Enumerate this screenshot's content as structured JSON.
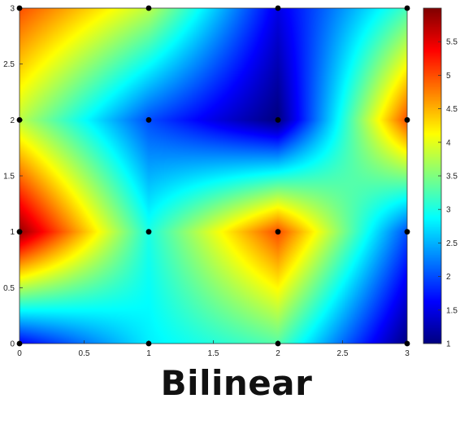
{
  "caption": "Bilinear",
  "chart_data": {
    "type": "heatmap",
    "interpolation": "bilinear",
    "colormap": "jet",
    "x_grid": [
      0,
      1,
      2,
      3
    ],
    "y_grid": [
      0,
      1,
      2,
      3
    ],
    "z": [
      [
        1.6,
        2.8,
        3.3,
        1.0
      ],
      [
        5.9,
        3.0,
        5.0,
        2.0
      ],
      [
        3.8,
        2.0,
        1.0,
        5.0
      ],
      [
        5.0,
        3.8,
        1.5,
        3.2
      ]
    ],
    "xlim": [
      0,
      3
    ],
    "ylim": [
      0,
      3
    ],
    "clim": [
      1,
      6
    ],
    "x_ticks": [
      "0",
      "0.5",
      "1",
      "1.5",
      "2",
      "2.5",
      "3"
    ],
    "x_tick_values": [
      0,
      0.5,
      1,
      1.5,
      2,
      2.5,
      3
    ],
    "y_ticks": [
      "0",
      "0.5",
      "1",
      "1.5",
      "2",
      "2.5",
      "3"
    ],
    "y_tick_values": [
      0,
      0.5,
      1,
      1.5,
      2,
      2.5,
      3
    ],
    "colorbar_ticks": [
      "1",
      "1.5",
      "2",
      "2.5",
      "3",
      "3.5",
      "4",
      "4.5",
      "5",
      "5.5"
    ],
    "colorbar_tick_values": [
      1,
      1.5,
      2,
      2.5,
      3,
      3.5,
      4,
      4.5,
      5,
      5.5
    ],
    "markers": {
      "color": "#000000",
      "style": "filled-circle",
      "at": "grid-points"
    }
  }
}
